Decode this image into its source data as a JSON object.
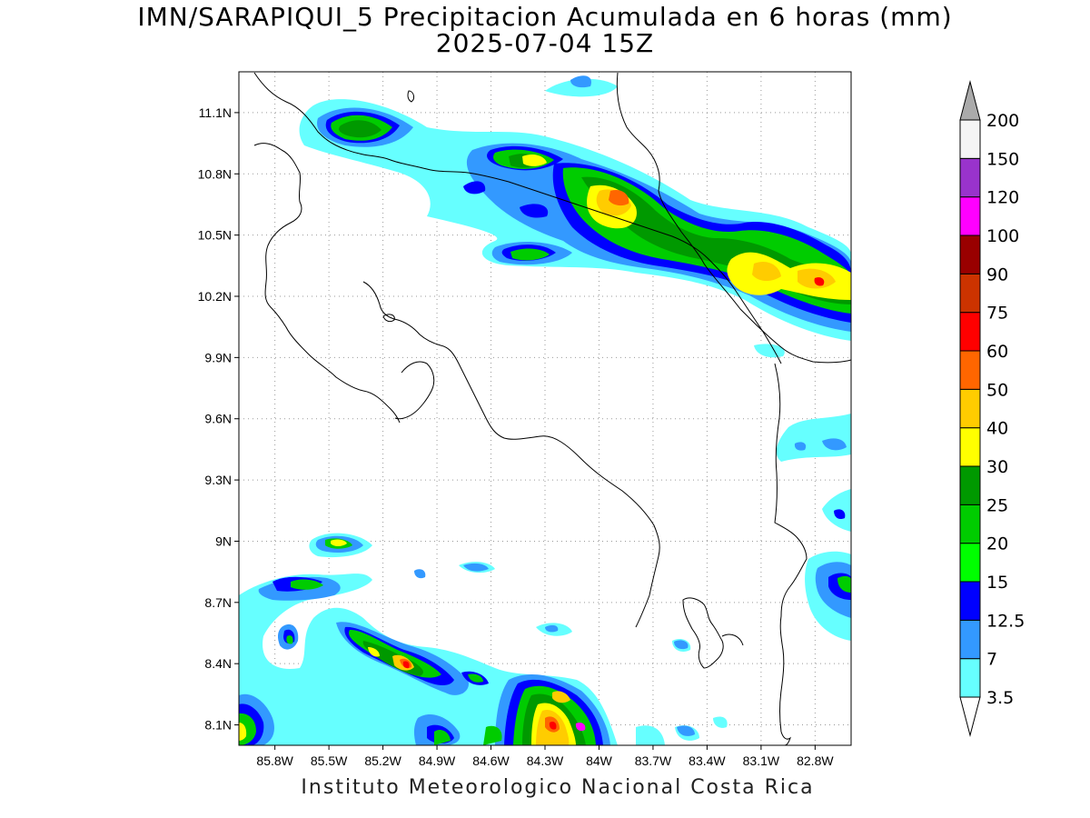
{
  "title": {
    "line1": "IMN/SARAPIQUI_5 Precipitacion Acumulada en 6 horas (mm)",
    "line2": "2025-07-04 15Z"
  },
  "footer": "Instituto Meteorologico Nacional Costa Rica",
  "map": {
    "lon_range": [
      -86.0,
      -82.6
    ],
    "lat_range": [
      8.0,
      11.3
    ],
    "x_ticks": [
      "85.8W",
      "85.5W",
      "85.2W",
      "84.9W",
      "84.6W",
      "84.3W",
      "84W",
      "83.7W",
      "83.4W",
      "83.1W",
      "82.8W"
    ],
    "x_tick_values": [
      -85.8,
      -85.5,
      -85.2,
      -84.9,
      -84.6,
      -84.3,
      -84.0,
      -83.7,
      -83.4,
      -83.1,
      -82.8
    ],
    "y_ticks": [
      "8.1N",
      "8.4N",
      "8.7N",
      "9N",
      "9.3N",
      "9.6N",
      "9.9N",
      "10.2N",
      "10.5N",
      "10.8N",
      "11.1N"
    ],
    "y_tick_values": [
      8.1,
      8.4,
      8.7,
      9.0,
      9.3,
      9.6,
      9.9,
      10.2,
      10.5,
      10.8,
      11.1
    ],
    "grid": "dotted"
  },
  "colorbar": {
    "levels": [
      "3.5",
      "7",
      "12.5",
      "15",
      "20",
      "25",
      "30",
      "40",
      "50",
      "60",
      "75",
      "90",
      "100",
      "120",
      "150",
      "200"
    ],
    "colors": [
      "#66ffff",
      "#3399ff",
      "#0000ff",
      "#00ff00",
      "#00cc00",
      "#009900",
      "#ffff00",
      "#ffcc00",
      "#ff6600",
      "#ff0000",
      "#cc3300",
      "#990000",
      "#ff00ff",
      "#9933cc",
      "#f5f5f5"
    ],
    "over_color": "#aaaaaa",
    "under_color": "#ffffff"
  }
}
